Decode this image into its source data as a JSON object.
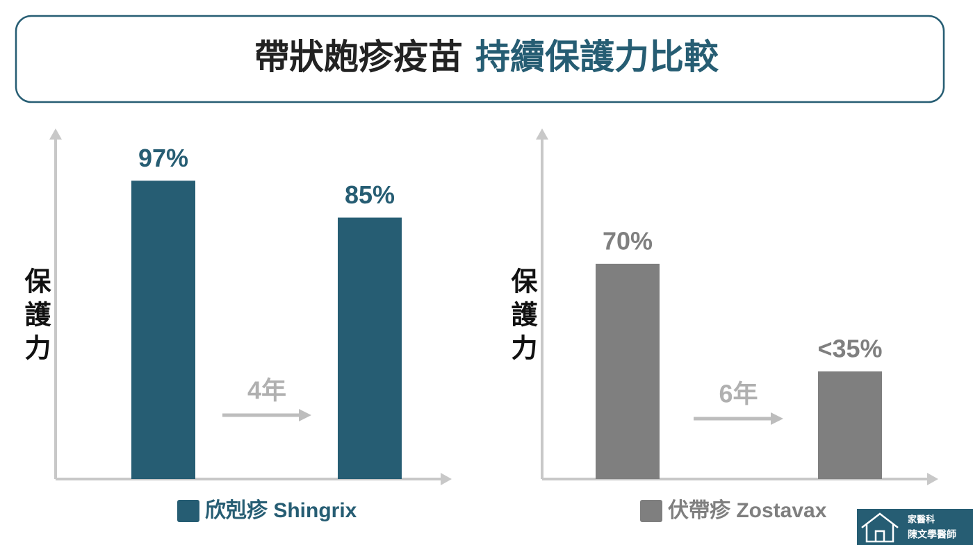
{
  "title": [
    "帶狀皰疹疫苗",
    "持續保護力比較"
  ],
  "chart_data": [
    {
      "type": "bar",
      "categories": [
        null,
        null
      ],
      "ylabel": "保護力",
      "annotation": "4年",
      "series": [
        {
          "name": "欣剋疹 Shingrix",
          "color": "#265d73",
          "values": [
            97,
            85
          ],
          "value_labels": [
            "97%",
            "85%"
          ]
        }
      ],
      "ylim": [
        0,
        114
      ]
    },
    {
      "type": "bar",
      "categories": [
        null,
        null
      ],
      "ylabel": "保護力",
      "annotation": "6年",
      "series": [
        {
          "name": "伏帶疹 Zostavax",
          "color": "#7f7f7f",
          "values": [
            70,
            35
          ],
          "value_labels": [
            "70%",
            "<35%"
          ]
        }
      ],
      "ylim": [
        0,
        114
      ]
    }
  ],
  "badge": [
    "家醫科",
    "陳文學醫師"
  ]
}
